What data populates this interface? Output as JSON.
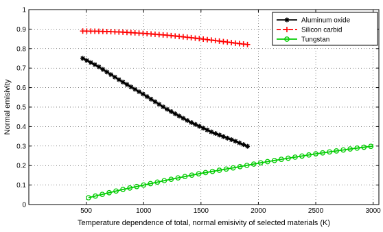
{
  "chart_data": {
    "type": "line",
    "xlabel": "Temperature dependence of total, normal emisivity of selected materials (K)",
    "ylabel": "Normal emisivity",
    "xlim": [
      0,
      3050
    ],
    "ylim": [
      0,
      1
    ],
    "xticks": [
      500,
      1000,
      1500,
      2000,
      2500,
      3000
    ],
    "yticks": [
      0,
      0.1,
      0.2,
      0.3,
      0.4,
      0.5,
      0.6,
      0.7,
      0.8,
      0.9,
      1
    ],
    "xtick_labels": [
      "500",
      "1000",
      "1500",
      "2000",
      "2500",
      "3000"
    ],
    "ytick_labels": [
      "0",
      "0.1",
      "0.2",
      "0.3",
      "0.4",
      "0.5",
      "0.6",
      "0.7",
      "0.8",
      "0.9",
      "1"
    ],
    "grid": true,
    "legend_position": "top-right",
    "series": [
      {
        "name": "Aluminum oxide",
        "color": "#000000",
        "marker": "star",
        "x": [
          470,
          600,
          800,
          1000,
          1200,
          1400,
          1600,
          1800,
          1920
        ],
        "y": [
          0.75,
          0.71,
          0.635,
          0.565,
          0.49,
          0.425,
          0.37,
          0.325,
          0.295
        ]
      },
      {
        "name": "Silicon carbid",
        "color": "#ff0000",
        "marker": "plus",
        "line": "dashed",
        "x": [
          470,
          600,
          800,
          1000,
          1200,
          1400,
          1600,
          1800,
          1920
        ],
        "y": [
          0.89,
          0.889,
          0.885,
          0.878,
          0.869,
          0.857,
          0.843,
          0.828,
          0.82
        ]
      },
      {
        "name": "Tungstan",
        "color": "#00cc00",
        "marker": "circle",
        "x": [
          520,
          800,
          1000,
          1200,
          1500,
          1800,
          2000,
          2200,
          2500,
          2800,
          3000
        ],
        "y": [
          0.035,
          0.075,
          0.1,
          0.125,
          0.16,
          0.19,
          0.212,
          0.232,
          0.26,
          0.285,
          0.3
        ]
      }
    ]
  }
}
